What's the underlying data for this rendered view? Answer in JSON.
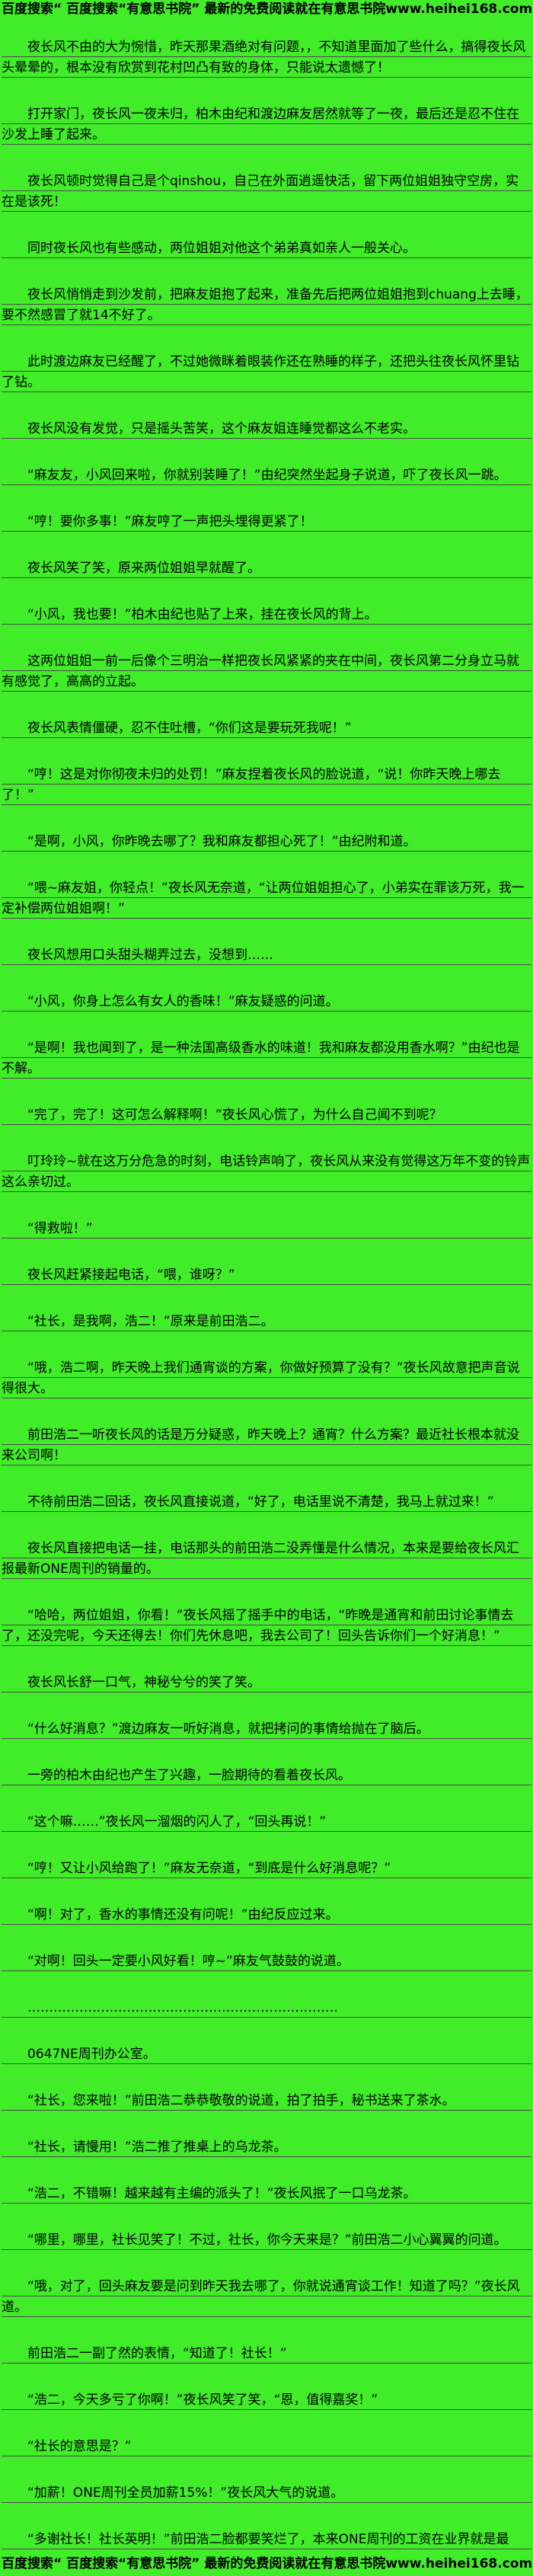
{
  "page": {
    "background_color": "#41EC28",
    "text_color": "#000000",
    "rule_line_color": "#4a4a4a"
  },
  "header": {
    "promo_text": "百度搜索“ 百度搜索“有意思书院” 最新的免费阅读就在有意思书院www.heihei168.com"
  },
  "footer": {
    "promo_text": "百度搜索“ 百度搜索“有意思书院” 最新的免费阅读就在有意思书院www.heihei168.com"
  },
  "content": {
    "paragraphs": [
      "夜长风不由的大为惋惜，昨天那果酒绝对有问题，，不知道里面加了些什么，搞得夜长风头晕晕的，根本没有欣赏到花村凹凸有致的身体，只能说太遗憾了！",
      "打开家门，夜长风一夜未归，柏木由纪和渡边麻友居然就等了一夜，最后还是忍不住在沙发上睡了起来。",
      "夜长风顿时觉得自己是个qinshou，自己在外面逍遥快活，留下两位姐姐独守空房，实在是该死！",
      "同时夜长风也有些感动，两位姐姐对他这个弟弟真如亲人一般关心。",
      "夜长风悄悄走到沙发前，把麻友姐抱了起来，准备先后把两位姐姐抱到chuang上去睡，要不然感冒了就14不好了。",
      "此时渡边麻友已经醒了，不过她微眯着眼装作还在熟睡的样子，还把头往夜长风怀里钻了钻。",
      "夜长风没有发觉，只是摇头苦笑，这个麻友姐连睡觉都这么不老实。",
      "“麻友友，小风回来啦，你就别装睡了！”由纪突然坐起身子说道，吓了夜长风一跳。",
      "“哼！要你多事！”麻友哼了一声把头埋得更紧了！",
      "夜长风笑了笑，原来两位姐姐早就醒了。",
      "“小风，我也要！”柏木由纪也贴了上来，挂在夜长风的背上。",
      "这两位姐姐一前一后像个三明治一样把夜长风紧紧的夹在中间，夜长风第二分身立马就有感觉了，高高的立起。",
      "夜长风表情僵硬，忍不住吐槽，“你们这是要玩死我呢！”",
      "“哼！这是对你彻夜未归的处罚！”麻友捏着夜长风的脸说道，“说！你昨天晚上哪去了！”",
      "“是啊，小风，你昨晚去哪了？我和麻友都担心死了！”由纪附和道。",
      "“喂~麻友姐，你轻点！”夜长风无奈道，“让两位姐姐担心了，小弟实在罪该万死，我一定补偿两位姐姐啊！”",
      "夜长风想用口头甜头糊弄过去，没想到……",
      "“小风，你身上怎么有女人的香味！”麻友疑惑的问道。",
      "“是啊！我也闻到了，是一种法国高级香水的味道！我和麻友都没用香水啊？”由纪也是不解。",
      "“完了，完了！这可怎么解释啊！”夜长风心慌了，为什么自己闻不到呢？",
      "叮玲玲~就在这万分危急的时刻，电话铃声响了，夜长风从来没有觉得这万年不变的铃声这么亲切过。",
      "“得救啦！”",
      "夜长风赶紧接起电话，“喂，谁呀？”",
      "“社长，是我啊，浩二！”原来是前田浩二。",
      "“哦，浩二啊，昨天晚上我们通宵谈的方案，你做好预算了没有？”夜长风故意把声音说得很大。",
      "前田浩二一听夜长风的话是万分疑惑，昨天晚上？通宵？什么方案？最近社长根本就没来公司啊！",
      "不待前田浩二回话，夜长风直接说道，“好了，电话里说不清楚，我马上就过来！”",
      "夜长风直接把电话一挂，电话那头的前田浩二没弄懂是什么情况，本来是要给夜长风汇报最新ONE周刊的销量的。",
      "“哈哈，两位姐姐，你看！”夜长风摇了摇手中的电话，“昨晚是通宵和前田讨论事情去了，还没完呢，今天还得去！你们先休息吧，我去公司了！回头告诉你们一个好消息！”",
      "夜长风长舒一口气，神秘兮兮的笑了笑。",
      "“什么好消息？”渡边麻友一听好消息，就把拷问的事情给抛在了脑后。",
      "一旁的柏木由纪也产生了兴趣，一脸期待的看着夜长风。",
      "“这个嘛……”夜长风一溜烟的闪人了，“回头再说！”",
      "“哼！又让小风给跑了！”麻友无奈道，“到底是什么好消息呢？”",
      "“啊！对了，香水的事情还没有问呢！”由纪反应过来。",
      "“对啊！回头一定要小风好看！哼~”麻友气鼓鼓的说道。",
      "………………………………………………………………",
      "0647NE周刊办公室。",
      "“社长，您来啦！”前田浩二恭恭敬敬的说道，拍了拍手，秘书送来了茶水。",
      "“社长，请慢用！”浩二推了推桌上的乌龙茶。",
      "“浩二，不错嘛！越来越有主编的派头了！”夜长风抿了一口乌龙茶。",
      "“哪里，哪里，社长见笑了！不过，社长，你今天来是？”前田浩二小心翼翼的问道。",
      "“哦，对了，回头麻友要是问到昨天我去哪了，你就说通宵谈工作！知道了吗？”夜长风道。",
      "前田浩二一副了然的表情，“知道了！社长！”",
      "“浩二，今天多亏了你啊！”夜长风笑了笑，“恩，值得嘉奖！”",
      "“社长的意思是？”",
      "“加薪！ONE周刊全员加薪15%！”夜长风大气的说道。",
      "“多谢社长！社长英明！”前田浩二脸都要笑烂了，本来ONE周刊的工资在业界就是最"
    ]
  }
}
